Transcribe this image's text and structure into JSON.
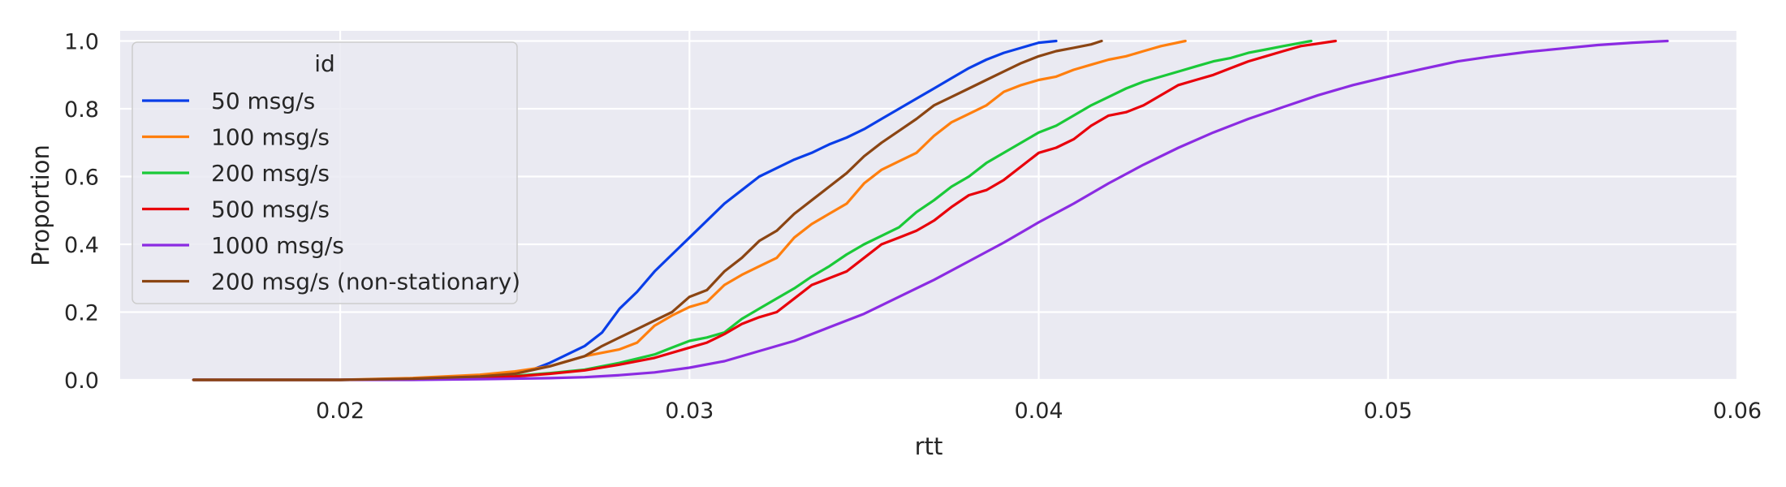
{
  "chart_data": {
    "type": "line",
    "xlabel": "rtt",
    "ylabel": "Proportion",
    "xlim": [
      0.0137,
      0.06
    ],
    "ylim": [
      0.0,
      1.03
    ],
    "xticks": [
      0.02,
      0.03,
      0.04,
      0.05,
      0.06
    ],
    "xtick_labels": [
      "0.02",
      "0.03",
      "0.04",
      "0.05",
      "0.06"
    ],
    "yticks": [
      0.0,
      0.2,
      0.4,
      0.6,
      0.8,
      1.0
    ],
    "ytick_labels": [
      "0.0",
      "0.2",
      "0.4",
      "0.6",
      "0.8",
      "1.0"
    ],
    "grid": true,
    "background": "#eaeaf2",
    "legend": {
      "title": "id",
      "placement": "upper-left"
    },
    "series": [
      {
        "name": "50 msg/s",
        "color": "#0a3ee8",
        "x": [
          0.0158,
          0.02,
          0.022,
          0.024,
          0.025,
          0.0255,
          0.026,
          0.0265,
          0.027,
          0.0275,
          0.028,
          0.0285,
          0.029,
          0.0295,
          0.03,
          0.0305,
          0.031,
          0.0315,
          0.032,
          0.0325,
          0.033,
          0.0335,
          0.034,
          0.0345,
          0.035,
          0.0355,
          0.036,
          0.0365,
          0.037,
          0.0375,
          0.038,
          0.0385,
          0.039,
          0.0395,
          0.04,
          0.0405
        ],
        "y": [
          0.0,
          0.0,
          0.002,
          0.01,
          0.02,
          0.03,
          0.05,
          0.075,
          0.1,
          0.14,
          0.21,
          0.26,
          0.32,
          0.37,
          0.42,
          0.47,
          0.52,
          0.56,
          0.6,
          0.625,
          0.65,
          0.67,
          0.695,
          0.715,
          0.74,
          0.77,
          0.8,
          0.83,
          0.86,
          0.89,
          0.92,
          0.945,
          0.965,
          0.98,
          0.995,
          1.0
        ]
      },
      {
        "name": "100 msg/s",
        "color": "#ff7f0e",
        "x": [
          0.0158,
          0.02,
          0.022,
          0.024,
          0.025,
          0.026,
          0.027,
          0.028,
          0.0285,
          0.029,
          0.0295,
          0.03,
          0.0305,
          0.031,
          0.0315,
          0.032,
          0.0325,
          0.033,
          0.0335,
          0.034,
          0.0345,
          0.035,
          0.0355,
          0.036,
          0.0365,
          0.037,
          0.0375,
          0.038,
          0.0385,
          0.039,
          0.0395,
          0.04,
          0.0405,
          0.041,
          0.0415,
          0.042,
          0.0425,
          0.043,
          0.0435,
          0.0442
        ],
        "y": [
          0.0,
          0.0,
          0.005,
          0.015,
          0.025,
          0.04,
          0.07,
          0.09,
          0.11,
          0.16,
          0.19,
          0.215,
          0.23,
          0.28,
          0.31,
          0.335,
          0.36,
          0.42,
          0.46,
          0.49,
          0.52,
          0.58,
          0.62,
          0.645,
          0.67,
          0.72,
          0.76,
          0.785,
          0.81,
          0.85,
          0.87,
          0.885,
          0.895,
          0.915,
          0.93,
          0.945,
          0.955,
          0.97,
          0.985,
          1.0
        ]
      },
      {
        "name": "200 msg/s",
        "color": "#1ac938",
        "x": [
          0.0158,
          0.02,
          0.022,
          0.024,
          0.025,
          0.026,
          0.027,
          0.028,
          0.029,
          0.0295,
          0.03,
          0.0305,
          0.031,
          0.0315,
          0.032,
          0.0325,
          0.033,
          0.0335,
          0.034,
          0.0345,
          0.035,
          0.0355,
          0.036,
          0.0365,
          0.037,
          0.0375,
          0.038,
          0.0385,
          0.039,
          0.0395,
          0.04,
          0.0405,
          0.041,
          0.0415,
          0.042,
          0.0425,
          0.043,
          0.0435,
          0.044,
          0.0445,
          0.045,
          0.0455,
          0.046,
          0.0465,
          0.047,
          0.0478
        ],
        "y": [
          0.0,
          0.0,
          0.002,
          0.008,
          0.012,
          0.02,
          0.03,
          0.05,
          0.075,
          0.095,
          0.115,
          0.125,
          0.14,
          0.18,
          0.21,
          0.24,
          0.27,
          0.305,
          0.335,
          0.37,
          0.4,
          0.425,
          0.45,
          0.495,
          0.53,
          0.57,
          0.6,
          0.64,
          0.67,
          0.7,
          0.73,
          0.75,
          0.78,
          0.81,
          0.835,
          0.86,
          0.88,
          0.895,
          0.91,
          0.925,
          0.94,
          0.95,
          0.965,
          0.975,
          0.985,
          1.0
        ]
      },
      {
        "name": "500 msg/s",
        "color": "#e8000b",
        "x": [
          0.0158,
          0.02,
          0.022,
          0.024,
          0.025,
          0.026,
          0.027,
          0.028,
          0.029,
          0.03,
          0.0305,
          0.031,
          0.0315,
          0.032,
          0.0325,
          0.033,
          0.0335,
          0.034,
          0.0345,
          0.035,
          0.0355,
          0.036,
          0.0365,
          0.037,
          0.0375,
          0.038,
          0.0385,
          0.039,
          0.0395,
          0.04,
          0.0405,
          0.041,
          0.0415,
          0.042,
          0.0425,
          0.043,
          0.0435,
          0.044,
          0.0445,
          0.045,
          0.0455,
          0.046,
          0.0465,
          0.047,
          0.0475,
          0.0485
        ],
        "y": [
          0.0,
          0.0,
          0.002,
          0.007,
          0.01,
          0.018,
          0.028,
          0.045,
          0.065,
          0.095,
          0.11,
          0.135,
          0.165,
          0.185,
          0.2,
          0.24,
          0.28,
          0.3,
          0.32,
          0.36,
          0.4,
          0.42,
          0.44,
          0.47,
          0.51,
          0.545,
          0.56,
          0.59,
          0.63,
          0.67,
          0.685,
          0.71,
          0.75,
          0.78,
          0.79,
          0.81,
          0.84,
          0.87,
          0.885,
          0.9,
          0.92,
          0.94,
          0.955,
          0.97,
          0.985,
          1.0
        ]
      },
      {
        "name": "1000 msg/s",
        "color": "#8b2be2",
        "x": [
          0.0158,
          0.02,
          0.022,
          0.024,
          0.026,
          0.027,
          0.028,
          0.029,
          0.03,
          0.031,
          0.032,
          0.033,
          0.034,
          0.035,
          0.036,
          0.037,
          0.038,
          0.039,
          0.04,
          0.041,
          0.042,
          0.043,
          0.044,
          0.045,
          0.046,
          0.047,
          0.048,
          0.049,
          0.05,
          0.051,
          0.052,
          0.053,
          0.054,
          0.055,
          0.056,
          0.057,
          0.058
        ],
        "y": [
          0.0,
          0.0,
          0.0,
          0.002,
          0.005,
          0.008,
          0.014,
          0.022,
          0.036,
          0.055,
          0.085,
          0.115,
          0.155,
          0.195,
          0.245,
          0.295,
          0.35,
          0.405,
          0.465,
          0.52,
          0.58,
          0.635,
          0.685,
          0.73,
          0.77,
          0.805,
          0.84,
          0.87,
          0.895,
          0.918,
          0.94,
          0.955,
          0.968,
          0.978,
          0.988,
          0.995,
          1.0
        ]
      },
      {
        "name": "200 msg/s (non-stationary)",
        "color": "#8b4513",
        "x": [
          0.0158,
          0.02,
          0.022,
          0.024,
          0.025,
          0.026,
          0.027,
          0.0275,
          0.028,
          0.0285,
          0.029,
          0.0295,
          0.03,
          0.0305,
          0.031,
          0.0315,
          0.032,
          0.0325,
          0.033,
          0.0335,
          0.034,
          0.0345,
          0.035,
          0.0355,
          0.036,
          0.0365,
          0.037,
          0.0375,
          0.038,
          0.0385,
          0.039,
          0.0395,
          0.04,
          0.0405,
          0.041,
          0.0415,
          0.0418
        ],
        "y": [
          0.0,
          0.0,
          0.003,
          0.01,
          0.018,
          0.04,
          0.07,
          0.1,
          0.125,
          0.15,
          0.175,
          0.2,
          0.245,
          0.265,
          0.32,
          0.36,
          0.41,
          0.44,
          0.49,
          0.53,
          0.57,
          0.61,
          0.66,
          0.7,
          0.735,
          0.77,
          0.81,
          0.835,
          0.86,
          0.885,
          0.91,
          0.935,
          0.955,
          0.97,
          0.98,
          0.99,
          1.0
        ]
      }
    ]
  }
}
